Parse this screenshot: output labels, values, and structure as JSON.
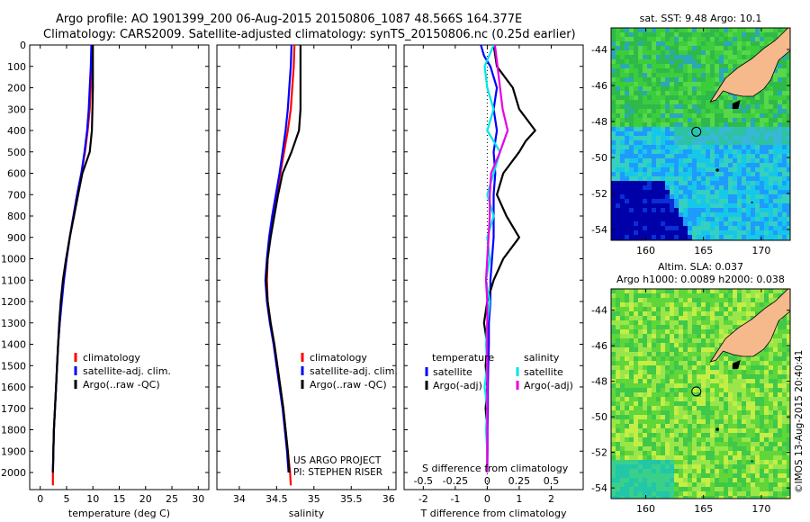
{
  "header": {
    "line1": "Argo profile: AO 1901399_200 06-Aug-2015 20150806_1087 48.566S 164.377E",
    "line2": "Climatology: CARS2009. Satellite-adjusted climatology: synTS_20150806.nc (0.25d earlier)"
  },
  "credit": {
    "project": "US ARGO PROJECT",
    "pi": "PI: STEPHEN RISER",
    "imos": "©IMOS 13-Aug-2015 20:40:41"
  },
  "colors": {
    "climatology": "#ff0000",
    "satellite": "#0000ff",
    "argo": "#000000",
    "salinity_satellite": "#00e5e5",
    "salinity_argo": "#e600e6",
    "land": "#f5b98c"
  },
  "chart_data": [
    {
      "type": "line",
      "id": "temperature",
      "xlabel": "temperature (deg C)",
      "ylabel": "",
      "xlim": [
        -2,
        32
      ],
      "ylim": [
        2080,
        0
      ],
      "xticks": [
        0,
        5,
        10,
        15,
        20,
        25,
        30
      ],
      "yticks": [
        0,
        100,
        200,
        300,
        400,
        500,
        600,
        700,
        800,
        900,
        1000,
        1100,
        1200,
        1300,
        1400,
        1500,
        1600,
        1700,
        1800,
        1900,
        2000
      ],
      "legend": [
        "climatology",
        "satellite-adj. clim.",
        "Argo(..raw -QC)"
      ],
      "series": [
        {
          "name": "climatology",
          "color": "#ff0000",
          "points": [
            [
              9.9,
              0
            ],
            [
              9.8,
              100
            ],
            [
              9.6,
              200
            ],
            [
              9.4,
              300
            ],
            [
              9.0,
              400
            ],
            [
              8.5,
              500
            ],
            [
              7.8,
              600
            ],
            [
              7.0,
              700
            ],
            [
              6.3,
              800
            ],
            [
              5.6,
              900
            ],
            [
              5.0,
              1000
            ],
            [
              4.5,
              1100
            ],
            [
              4.0,
              1200
            ],
            [
              3.7,
              1300
            ],
            [
              3.4,
              1400
            ],
            [
              3.2,
              1500
            ],
            [
              3.0,
              1600
            ],
            [
              2.8,
              1700
            ],
            [
              2.6,
              1800
            ],
            [
              2.5,
              1900
            ],
            [
              2.4,
              2000
            ],
            [
              2.4,
              2060
            ]
          ]
        },
        {
          "name": "satellite-adj. clim.",
          "color": "#0000ff",
          "points": [
            [
              9.7,
              0
            ],
            [
              9.6,
              100
            ],
            [
              9.4,
              200
            ],
            [
              9.2,
              300
            ],
            [
              8.9,
              400
            ],
            [
              8.4,
              500
            ],
            [
              7.8,
              600
            ],
            [
              7.0,
              700
            ],
            [
              6.3,
              800
            ],
            [
              5.6,
              900
            ],
            [
              5.0,
              1000
            ],
            [
              4.5,
              1100
            ],
            [
              4.1,
              1200
            ],
            [
              3.7,
              1300
            ],
            [
              3.4,
              1400
            ],
            [
              3.2,
              1500
            ],
            [
              3.0,
              1600
            ],
            [
              2.8,
              1700
            ],
            [
              2.6,
              1800
            ],
            [
              2.5,
              1900
            ],
            [
              2.4,
              2000
            ]
          ]
        },
        {
          "name": "Argo(..raw -QC)",
          "color": "#000000",
          "points": [
            [
              10.0,
              0
            ],
            [
              10.0,
              100
            ],
            [
              10.0,
              200
            ],
            [
              9.9,
              300
            ],
            [
              9.8,
              400
            ],
            [
              9.4,
              500
            ],
            [
              8.0,
              600
            ],
            [
              7.2,
              700
            ],
            [
              6.4,
              800
            ],
            [
              5.6,
              900
            ],
            [
              4.9,
              1000
            ],
            [
              4.3,
              1100
            ],
            [
              3.9,
              1200
            ],
            [
              3.6,
              1300
            ],
            [
              3.4,
              1400
            ],
            [
              3.2,
              1500
            ],
            [
              3.0,
              1600
            ],
            [
              2.8,
              1700
            ],
            [
              2.6,
              1800
            ],
            [
              2.5,
              1900
            ],
            [
              2.4,
              2000
            ]
          ]
        }
      ]
    },
    {
      "type": "line",
      "id": "salinity",
      "xlabel": "salinity",
      "ylabel": "",
      "xlim": [
        33.7,
        36.1
      ],
      "ylim": [
        2080,
        0
      ],
      "xticks": [
        34,
        34.5,
        35,
        35.5,
        36
      ],
      "xticklabels": [
        "34",
        "34.5",
        "35",
        "35.5",
        "36"
      ],
      "legend": [
        "climatology",
        "satellite-adj. clim.",
        "Argo(..raw -QC)"
      ],
      "series": [
        {
          "name": "climatology",
          "color": "#ff0000",
          "points": [
            [
              34.74,
              0
            ],
            [
              34.73,
              100
            ],
            [
              34.71,
              200
            ],
            [
              34.69,
              300
            ],
            [
              34.65,
              400
            ],
            [
              34.6,
              500
            ],
            [
              34.55,
              600
            ],
            [
              34.5,
              700
            ],
            [
              34.45,
              800
            ],
            [
              34.41,
              900
            ],
            [
              34.38,
              1000
            ],
            [
              34.37,
              1100
            ],
            [
              34.38,
              1200
            ],
            [
              34.42,
              1300
            ],
            [
              34.47,
              1400
            ],
            [
              34.51,
              1500
            ],
            [
              34.55,
              1600
            ],
            [
              34.59,
              1700
            ],
            [
              34.62,
              1800
            ],
            [
              34.65,
              1900
            ],
            [
              34.68,
              2000
            ],
            [
              34.69,
              2060
            ]
          ]
        },
        {
          "name": "satellite-adj. clim.",
          "color": "#0000ff",
          "points": [
            [
              34.7,
              0
            ],
            [
              34.69,
              100
            ],
            [
              34.67,
              200
            ],
            [
              34.65,
              300
            ],
            [
              34.62,
              400
            ],
            [
              34.58,
              500
            ],
            [
              34.54,
              600
            ],
            [
              34.49,
              700
            ],
            [
              34.44,
              800
            ],
            [
              34.4,
              900
            ],
            [
              34.37,
              1000
            ],
            [
              34.35,
              1100
            ],
            [
              34.37,
              1200
            ],
            [
              34.41,
              1300
            ],
            [
              34.46,
              1400
            ],
            [
              34.5,
              1500
            ],
            [
              34.54,
              1600
            ],
            [
              34.58,
              1700
            ],
            [
              34.61,
              1800
            ],
            [
              34.64,
              1900
            ],
            [
              34.66,
              2000
            ]
          ]
        },
        {
          "name": "Argo(..raw -QC)",
          "color": "#000000",
          "points": [
            [
              34.82,
              0
            ],
            [
              34.82,
              100
            ],
            [
              34.82,
              200
            ],
            [
              34.82,
              300
            ],
            [
              34.8,
              400
            ],
            [
              34.7,
              500
            ],
            [
              34.58,
              600
            ],
            [
              34.52,
              700
            ],
            [
              34.47,
              800
            ],
            [
              34.42,
              900
            ],
            [
              34.38,
              1000
            ],
            [
              34.36,
              1100
            ],
            [
              34.38,
              1200
            ],
            [
              34.42,
              1300
            ],
            [
              34.47,
              1400
            ],
            [
              34.51,
              1500
            ],
            [
              34.55,
              1600
            ],
            [
              34.59,
              1700
            ],
            [
              34.62,
              1800
            ],
            [
              34.65,
              1900
            ],
            [
              34.67,
              2000
            ]
          ]
        }
      ]
    },
    {
      "type": "line",
      "id": "difference",
      "xlabel": "T difference from climatology",
      "xlabel_top": "S difference from climatology",
      "ylabel": "",
      "xlim": [
        -2.6,
        3.0
      ],
      "ylim": [
        2080,
        0
      ],
      "xticks": [
        -2,
        -1,
        0,
        1,
        2
      ],
      "xticklabels": [
        "-2",
        "-1",
        "0",
        "1",
        "2"
      ],
      "s_ticks": [
        "-0.5",
        "-0.25",
        "0",
        "0.25",
        "0.5"
      ],
      "legend_temperature_title": "temperature",
      "legend_salinity_title": "salinity",
      "legend_temperature": [
        "satellite",
        "Argo(-adj)"
      ],
      "legend_salinity": [
        "satellite",
        "Argo(-adj)"
      ],
      "series": [
        {
          "name": "satellite",
          "group": "temperature",
          "color": "#0000ff",
          "points": [
            [
              -0.2,
              0
            ],
            [
              -0.1,
              50
            ],
            [
              0.1,
              100
            ],
            [
              0.3,
              200
            ],
            [
              0.2,
              300
            ],
            [
              0.3,
              400
            ],
            [
              0.2,
              500
            ],
            [
              0.25,
              600
            ],
            [
              0.2,
              700
            ],
            [
              0.2,
              800
            ],
            [
              0.2,
              900
            ],
            [
              0.15,
              1000
            ],
            [
              0.1,
              1100
            ],
            [
              0.1,
              1200
            ],
            [
              0.05,
              1300
            ],
            [
              0.05,
              1400
            ],
            [
              0.03,
              1500
            ],
            [
              0.02,
              1600
            ],
            [
              0.02,
              1700
            ],
            [
              0.01,
              1800
            ],
            [
              0.01,
              1900
            ],
            [
              0.0,
              2000
            ]
          ]
        },
        {
          "name": "Argo(-adj)",
          "group": "temperature",
          "color": "#000000",
          "points": [
            [
              0.2,
              0
            ],
            [
              0.3,
              100
            ],
            [
              0.8,
              200
            ],
            [
              1.0,
              300
            ],
            [
              1.5,
              400
            ],
            [
              1.2,
              450
            ],
            [
              1.0,
              500
            ],
            [
              0.5,
              600
            ],
            [
              0.3,
              700
            ],
            [
              0.6,
              800
            ],
            [
              1.0,
              900
            ],
            [
              0.5,
              1000
            ],
            [
              0.2,
              1100
            ],
            [
              0.0,
              1200
            ],
            [
              -0.1,
              1300
            ],
            [
              0.0,
              1400
            ],
            [
              -0.05,
              1500
            ],
            [
              0.0,
              1600
            ],
            [
              -0.05,
              1700
            ],
            [
              0.0,
              1800
            ],
            [
              0.0,
              1900
            ],
            [
              0.0,
              2000
            ]
          ]
        },
        {
          "name": "satellite",
          "group": "salinity",
          "color": "#00e5e5",
          "points": [
            [
              0.05,
              0
            ],
            [
              -0.02,
              100
            ],
            [
              0.0,
              200
            ],
            [
              0.05,
              300
            ],
            [
              0.0,
              400
            ],
            [
              0.1,
              500
            ],
            [
              0.05,
              600
            ],
            [
              0.0,
              700
            ],
            [
              0.05,
              800
            ],
            [
              0.0,
              900
            ],
            [
              0.02,
              1000
            ],
            [
              -0.01,
              1100
            ],
            [
              0.02,
              1200
            ],
            [
              0.0,
              1300
            ],
            [
              -0.01,
              1400
            ],
            [
              0.0,
              1500
            ],
            [
              -0.02,
              1600
            ],
            [
              0.0,
              1700
            ],
            [
              -0.01,
              1800
            ],
            [
              0.0,
              1900
            ],
            [
              0.0,
              2000
            ]
          ]
        },
        {
          "name": "Argo(-adj)",
          "group": "salinity",
          "color": "#e600e6",
          "points": [
            [
              0.06,
              0
            ],
            [
              0.08,
              100
            ],
            [
              0.1,
              200
            ],
            [
              0.12,
              300
            ],
            [
              0.16,
              400
            ],
            [
              0.1,
              500
            ],
            [
              0.03,
              600
            ],
            [
              0.02,
              700
            ],
            [
              0.02,
              800
            ],
            [
              0.01,
              900
            ],
            [
              0.0,
              1000
            ],
            [
              -0.01,
              1100
            ],
            [
              0.0,
              1200
            ],
            [
              0.0,
              1300
            ],
            [
              0.0,
              1400
            ],
            [
              0.0,
              1500
            ],
            [
              0.0,
              1600
            ],
            [
              0.0,
              1700
            ],
            [
              0.0,
              1800
            ],
            [
              0.0,
              1900
            ],
            [
              0.0,
              2000
            ]
          ]
        }
      ]
    },
    {
      "type": "heatmap",
      "id": "sst_map",
      "title": "sat. SST: 9.48  Argo: 10.1",
      "xlim": [
        157,
        172.5
      ],
      "ylim": [
        -54.6,
        -42.8
      ],
      "xticks": [
        160,
        165,
        170
      ],
      "yticks": [
        -44,
        -46,
        -48,
        -50,
        -52,
        -54
      ],
      "marker": {
        "lon": 164.377,
        "lat": -48.566
      }
    },
    {
      "type": "heatmap",
      "id": "sla_map",
      "title": "Altim. SLA: 0.037",
      "subtitle": "Argo h1000: 0.0089  h2000: 0.038",
      "xlim": [
        157,
        172.5
      ],
      "ylim": [
        -54.6,
        -42.8
      ],
      "xticks": [
        160,
        165,
        170
      ],
      "yticks": [
        -44,
        -46,
        -48,
        -50,
        -52,
        -54
      ],
      "marker": {
        "lon": 164.377,
        "lat": -48.566
      }
    }
  ]
}
